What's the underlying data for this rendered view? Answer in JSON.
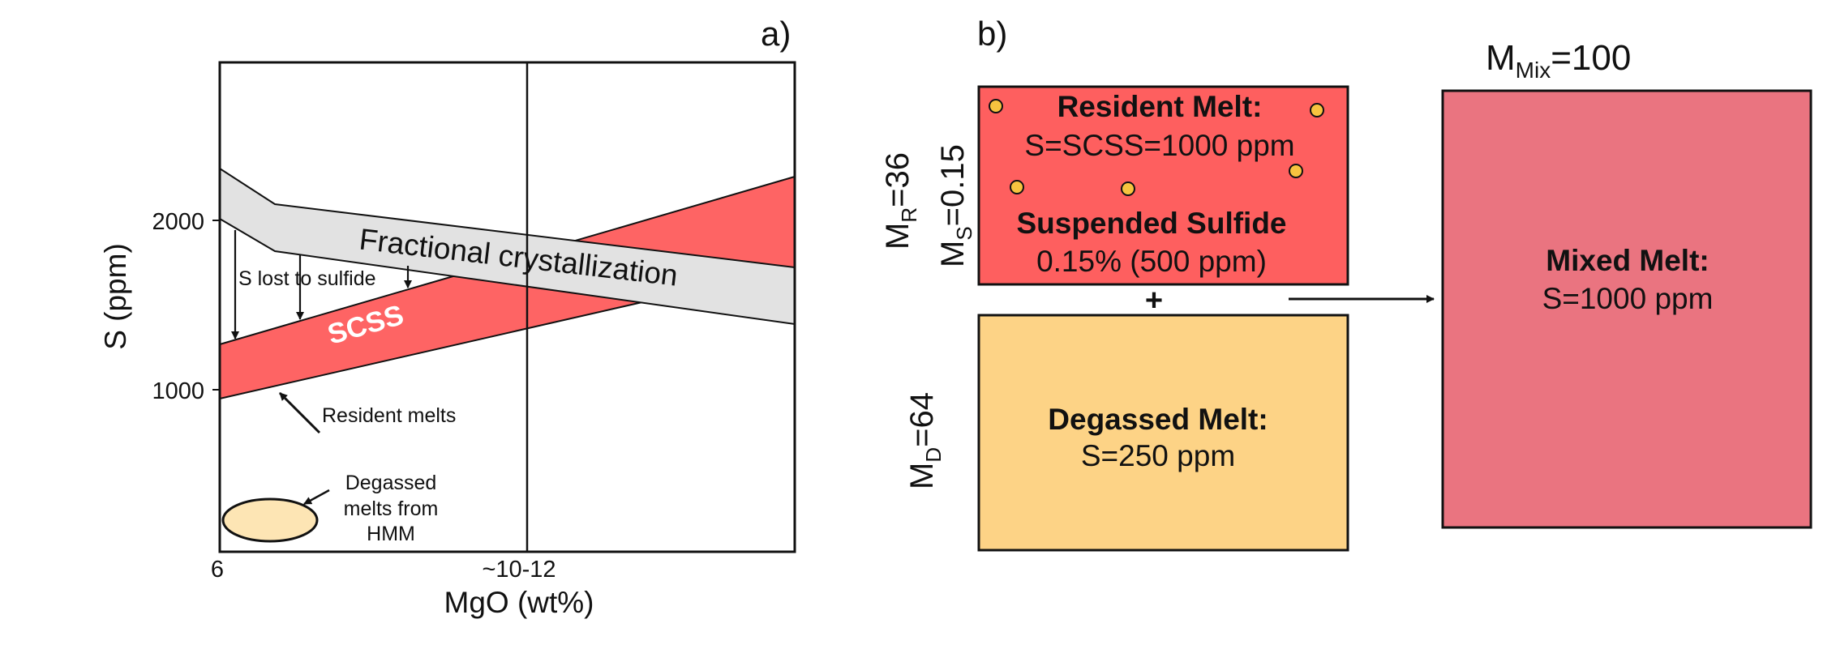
{
  "panel_a": {
    "label": "a)",
    "ylabel": "S (ppm)",
    "xlabel": "MgO (wt%)",
    "yticks": [
      "2000",
      "1000"
    ],
    "xticks": [
      "6",
      "~10-12"
    ],
    "fractional_label": "Fractional crystallization",
    "sulfide_label": "S lost to sulfide",
    "scss_label": "SCSS",
    "resident_label": "Resident melts",
    "degassed_label": [
      "Degassed",
      "melts from",
      "HMM"
    ],
    "colors": {
      "scss": "#fe6464",
      "fractional": "#e2e2e2",
      "degassed": "#fde5b4"
    }
  },
  "panel_b": {
    "label": "b)",
    "mix_title": {
      "base": "M",
      "sub": "Mix",
      "value": "=100"
    },
    "resident": {
      "title": "Resident Melt:",
      "line": "S=SCSS=1000 ppm"
    },
    "suspended": {
      "title": "Suspended Sulfide",
      "line": "0.15% (500 ppm)"
    },
    "plus": "+",
    "degassed": {
      "title": "Degassed Melt:",
      "line": "S=250 ppm"
    },
    "mixed": {
      "title": "Mixed Melt:",
      "line": "S=1000 ppm"
    },
    "mr": {
      "base": "M",
      "sub": "R",
      "value": "=36"
    },
    "ms": {
      "base": "M",
      "sub": "S",
      "value": "=0.15"
    },
    "md": {
      "base": "M",
      "sub": "D",
      "value": "=64"
    },
    "colors": {
      "resident": "#fe5f5f",
      "degassed": "#fdd386",
      "mixed": "#ea7480",
      "dot": "#f7c33f"
    }
  }
}
